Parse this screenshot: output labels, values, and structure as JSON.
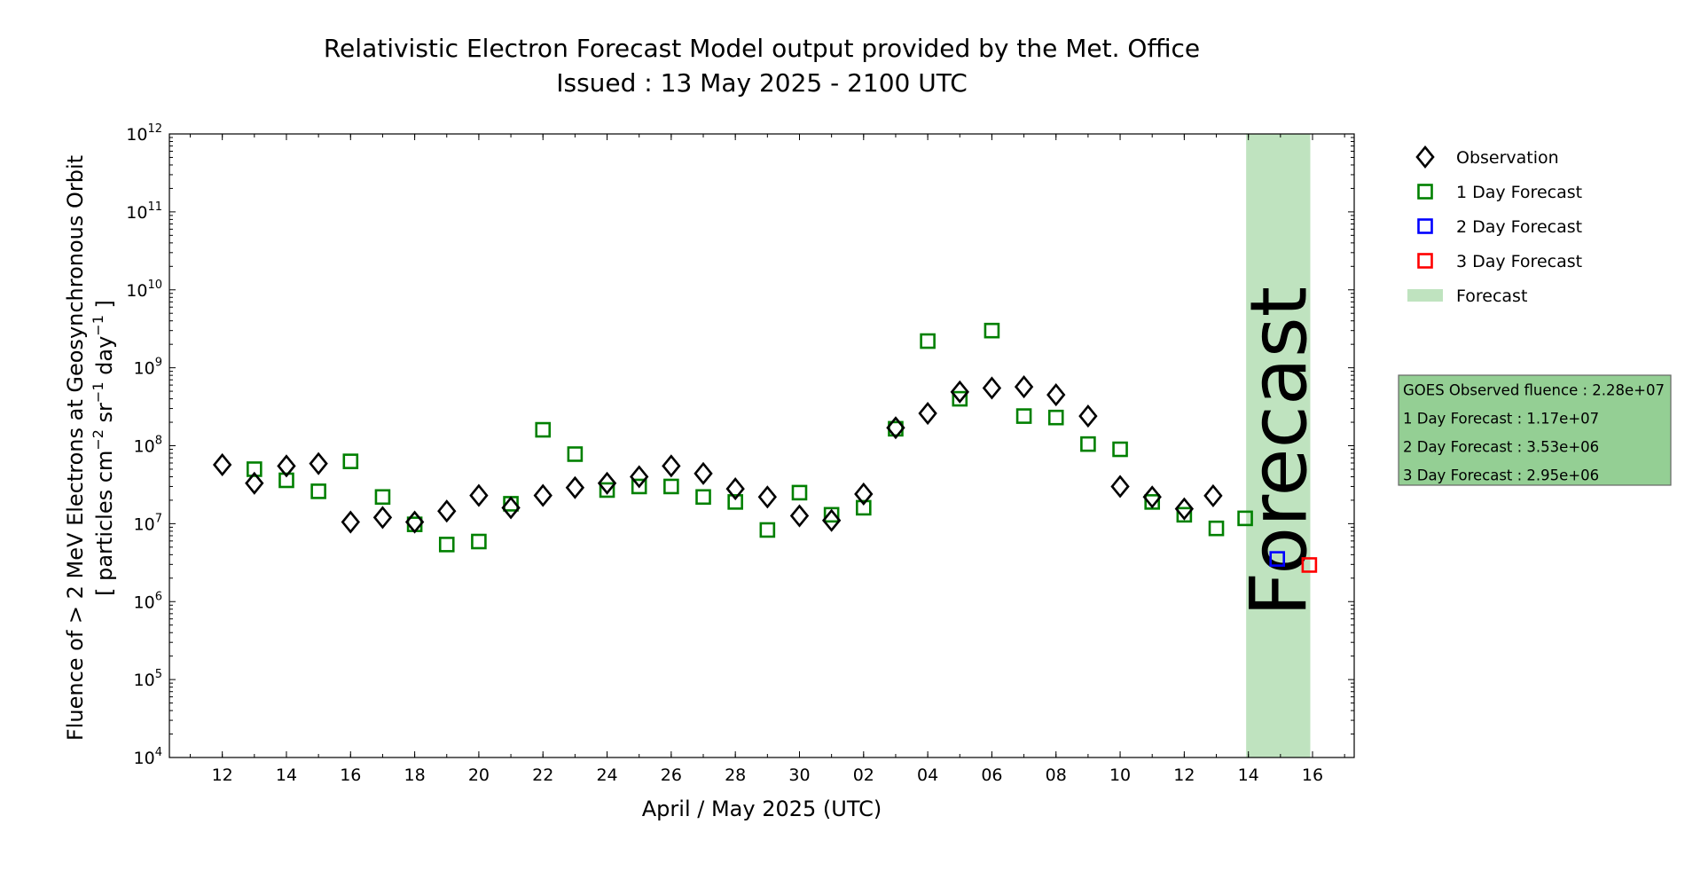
{
  "chart_data": {
    "type": "scatter",
    "title": "Relativistic Electron Forecast Model output provided by the Met. Office",
    "subtitle": "Issued : 13 May 2025 - 2100 UTC",
    "xlabel": "April / May 2025 (UTC)",
    "ylabel": "Fluence of > 2 MeV Electrons at Geosynchronous Orbit",
    "ylabel_units_parts": [
      "[ particles cm",
      "−2",
      " sr",
      "−1",
      " day",
      "−1",
      " ]"
    ],
    "x_units": "days since 12 April 2025",
    "xlim": [
      -1.65,
      35.3
    ],
    "yscale": "log",
    "ylim": [
      10000.0,
      1000000000000.0
    ],
    "y_tick_exponents": [
      4,
      5,
      6,
      7,
      8,
      9,
      10,
      11,
      12
    ],
    "x_ticks": [
      {
        "x": 0,
        "label": "12"
      },
      {
        "x": 2,
        "label": "14"
      },
      {
        "x": 4,
        "label": "16"
      },
      {
        "x": 6,
        "label": "18"
      },
      {
        "x": 8,
        "label": "20"
      },
      {
        "x": 10,
        "label": "22"
      },
      {
        "x": 12,
        "label": "24"
      },
      {
        "x": 14,
        "label": "26"
      },
      {
        "x": 16,
        "label": "28"
      },
      {
        "x": 18,
        "label": "30"
      },
      {
        "x": 20,
        "label": "02"
      },
      {
        "x": 22,
        "label": "04"
      },
      {
        "x": 24,
        "label": "06"
      },
      {
        "x": 26,
        "label": "08"
      },
      {
        "x": 28,
        "label": "10"
      },
      {
        "x": 30,
        "label": "12"
      },
      {
        "x": 32,
        "label": "14"
      },
      {
        "x": 34,
        "label": "16"
      }
    ],
    "forecast_band": {
      "x0": 31.93,
      "x1": 33.93,
      "label": "Forecast",
      "color": "#bfe3bf",
      "text_color": "#8a9c88"
    },
    "series": [
      {
        "name": "Observation",
        "marker": "diamond",
        "color": "#000000",
        "x": [
          0,
          1,
          2,
          3,
          4,
          5,
          6,
          7,
          8,
          9,
          10,
          11,
          12,
          13,
          14,
          15,
          16,
          17,
          18,
          19,
          20,
          21,
          22,
          23,
          24,
          25,
          26,
          27,
          28,
          29,
          30,
          30.9
        ],
        "y": [
          57000000.0,
          33000000.0,
          55000000.0,
          59000000.0,
          10500000.0,
          12000000.0,
          10500000.0,
          14500000.0,
          23000000.0,
          16000000.0,
          23000000.0,
          29000000.0,
          33000000.0,
          40000000.0,
          55000000.0,
          44000000.0,
          28000000.0,
          22000000.0,
          12600000.0,
          11000000.0,
          24000000.0,
          170000000.0,
          260000000.0,
          490000000.0,
          550000000.0,
          570000000.0,
          450000000.0,
          240000000.0,
          30000000.0,
          22000000.0,
          15500000.0,
          22800000.0
        ]
      },
      {
        "name": "1 Day Forecast",
        "marker": "square",
        "color": "#008000",
        "x": [
          1,
          2,
          3,
          4,
          5,
          6,
          7,
          8,
          9,
          10,
          11,
          12,
          13,
          14,
          15,
          16,
          17,
          18,
          19,
          20,
          21,
          22,
          23,
          24,
          25,
          26,
          27,
          28,
          29,
          30,
          31,
          31.9
        ],
        "y": [
          50000000.0,
          36000000.0,
          26000000.0,
          63000000.0,
          22000000.0,
          9800000.0,
          5400000.0,
          5900000.0,
          18000000.0,
          160000000.0,
          78000000.0,
          27000000.0,
          30000000.0,
          30000000.0,
          22000000.0,
          19000000.0,
          8300000.0,
          25000000.0,
          13000000.0,
          16000000.0,
          165000000.0,
          2200000000.0,
          400000000.0,
          3000000000.0,
          240000000.0,
          230000000.0,
          105000000.0,
          90000000.0,
          19000000.0,
          13000000.0,
          8700000.0,
          11700000.0
        ]
      },
      {
        "name": "2 Day Forecast",
        "marker": "square",
        "color": "#0000ff",
        "x": [
          32.9
        ],
        "y": [
          3530000.0
        ]
      },
      {
        "name": "3 Day Forecast",
        "marker": "square",
        "color": "#ff0000",
        "x": [
          33.9
        ],
        "y": [
          2950000.0
        ]
      }
    ],
    "legend": {
      "placement": "right",
      "entries": [
        {
          "label": "Observation",
          "marker": "diamond",
          "color": "#000000"
        },
        {
          "label": "1 Day Forecast",
          "marker": "square",
          "color": "#008000"
        },
        {
          "label": "2 Day Forecast",
          "marker": "square",
          "color": "#0000ff"
        },
        {
          "label": "3 Day Forecast",
          "marker": "square",
          "color": "#ff0000"
        },
        {
          "label": "Forecast",
          "marker": "patch",
          "color": "#bfe3bf"
        }
      ]
    },
    "info_box": {
      "color": "#94cf94",
      "lines": [
        "GOES Observed fluence : 2.28e+07",
        "1 Day Forecast : 1.17e+07",
        "2 Day Forecast : 3.53e+06",
        "3 Day Forecast : 2.95e+06"
      ]
    }
  }
}
